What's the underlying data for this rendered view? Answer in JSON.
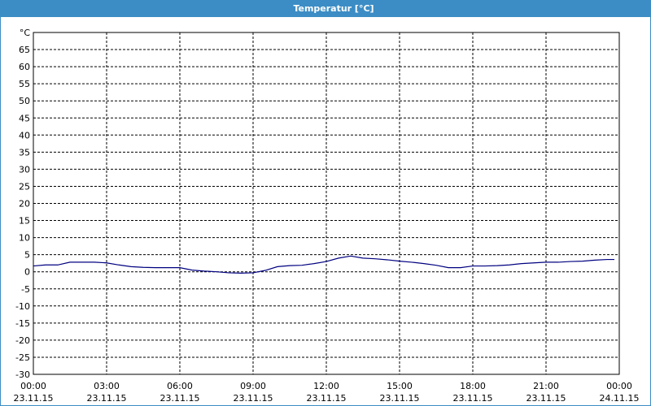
{
  "chart_data": {
    "type": "line",
    "title": "Temperatur [°C]",
    "x": [
      0,
      0.5,
      1,
      1.5,
      2,
      2.5,
      3,
      3.5,
      4,
      4.5,
      5,
      5.5,
      6,
      6.5,
      7,
      7.5,
      8,
      8.5,
      9,
      9.5,
      10,
      10.5,
      11,
      11.5,
      12,
      12.5,
      13,
      13.5,
      14,
      14.5,
      15,
      15.5,
      16,
      16.5,
      17,
      17.5,
      18,
      18.5,
      19,
      19.5,
      20,
      20.5,
      21,
      21.5,
      22,
      22.5,
      23,
      23.5,
      23.8
    ],
    "series": [
      {
        "color": "#000080",
        "values": [
          1.7,
          2,
          2,
          2.8,
          2.8,
          2.8,
          2.6,
          2,
          1.5,
          1.3,
          1.2,
          1.2,
          1.2,
          0.5,
          0.2,
          0,
          -0.3,
          -0.4,
          -0.3,
          0.4,
          1.5,
          1.8,
          1.9,
          2.4,
          3,
          4,
          4.6,
          4,
          3.8,
          3.5,
          3.1,
          2.8,
          2.4,
          1.9,
          1.2,
          1.2,
          1.7,
          1.7,
          1.8,
          2,
          2.4,
          2.6,
          2.8,
          2.8,
          3,
          3.1,
          3.4,
          3.6,
          3.6
        ]
      }
    ],
    "xlim": [
      0,
      24
    ],
    "xticks": [
      {
        "value": 0,
        "label": "00:00",
        "date": "23.11.15"
      },
      {
        "value": 3,
        "label": "03:00",
        "date": "23.11.15"
      },
      {
        "value": 6,
        "label": "06:00",
        "date": "23.11.15"
      },
      {
        "value": 9,
        "label": "09:00",
        "date": "23.11.15"
      },
      {
        "value": 12,
        "label": "12:00",
        "date": "23.11.15"
      },
      {
        "value": 15,
        "label": "15:00",
        "date": "23.11.15"
      },
      {
        "value": 18,
        "label": "18:00",
        "date": "23.11.15"
      },
      {
        "value": 21,
        "label": "21:00",
        "date": "23.11.15"
      },
      {
        "value": 24,
        "label": "00:00",
        "date": "24.11.15"
      }
    ],
    "ylim": [
      -30,
      70
    ],
    "yticks": [
      -30,
      -25,
      -20,
      -15,
      -10,
      -5,
      0,
      5,
      10,
      15,
      20,
      25,
      30,
      35,
      40,
      45,
      50,
      55,
      60,
      65,
      {
        "value": 70,
        "label": "°C"
      }
    ],
    "grid": true
  }
}
